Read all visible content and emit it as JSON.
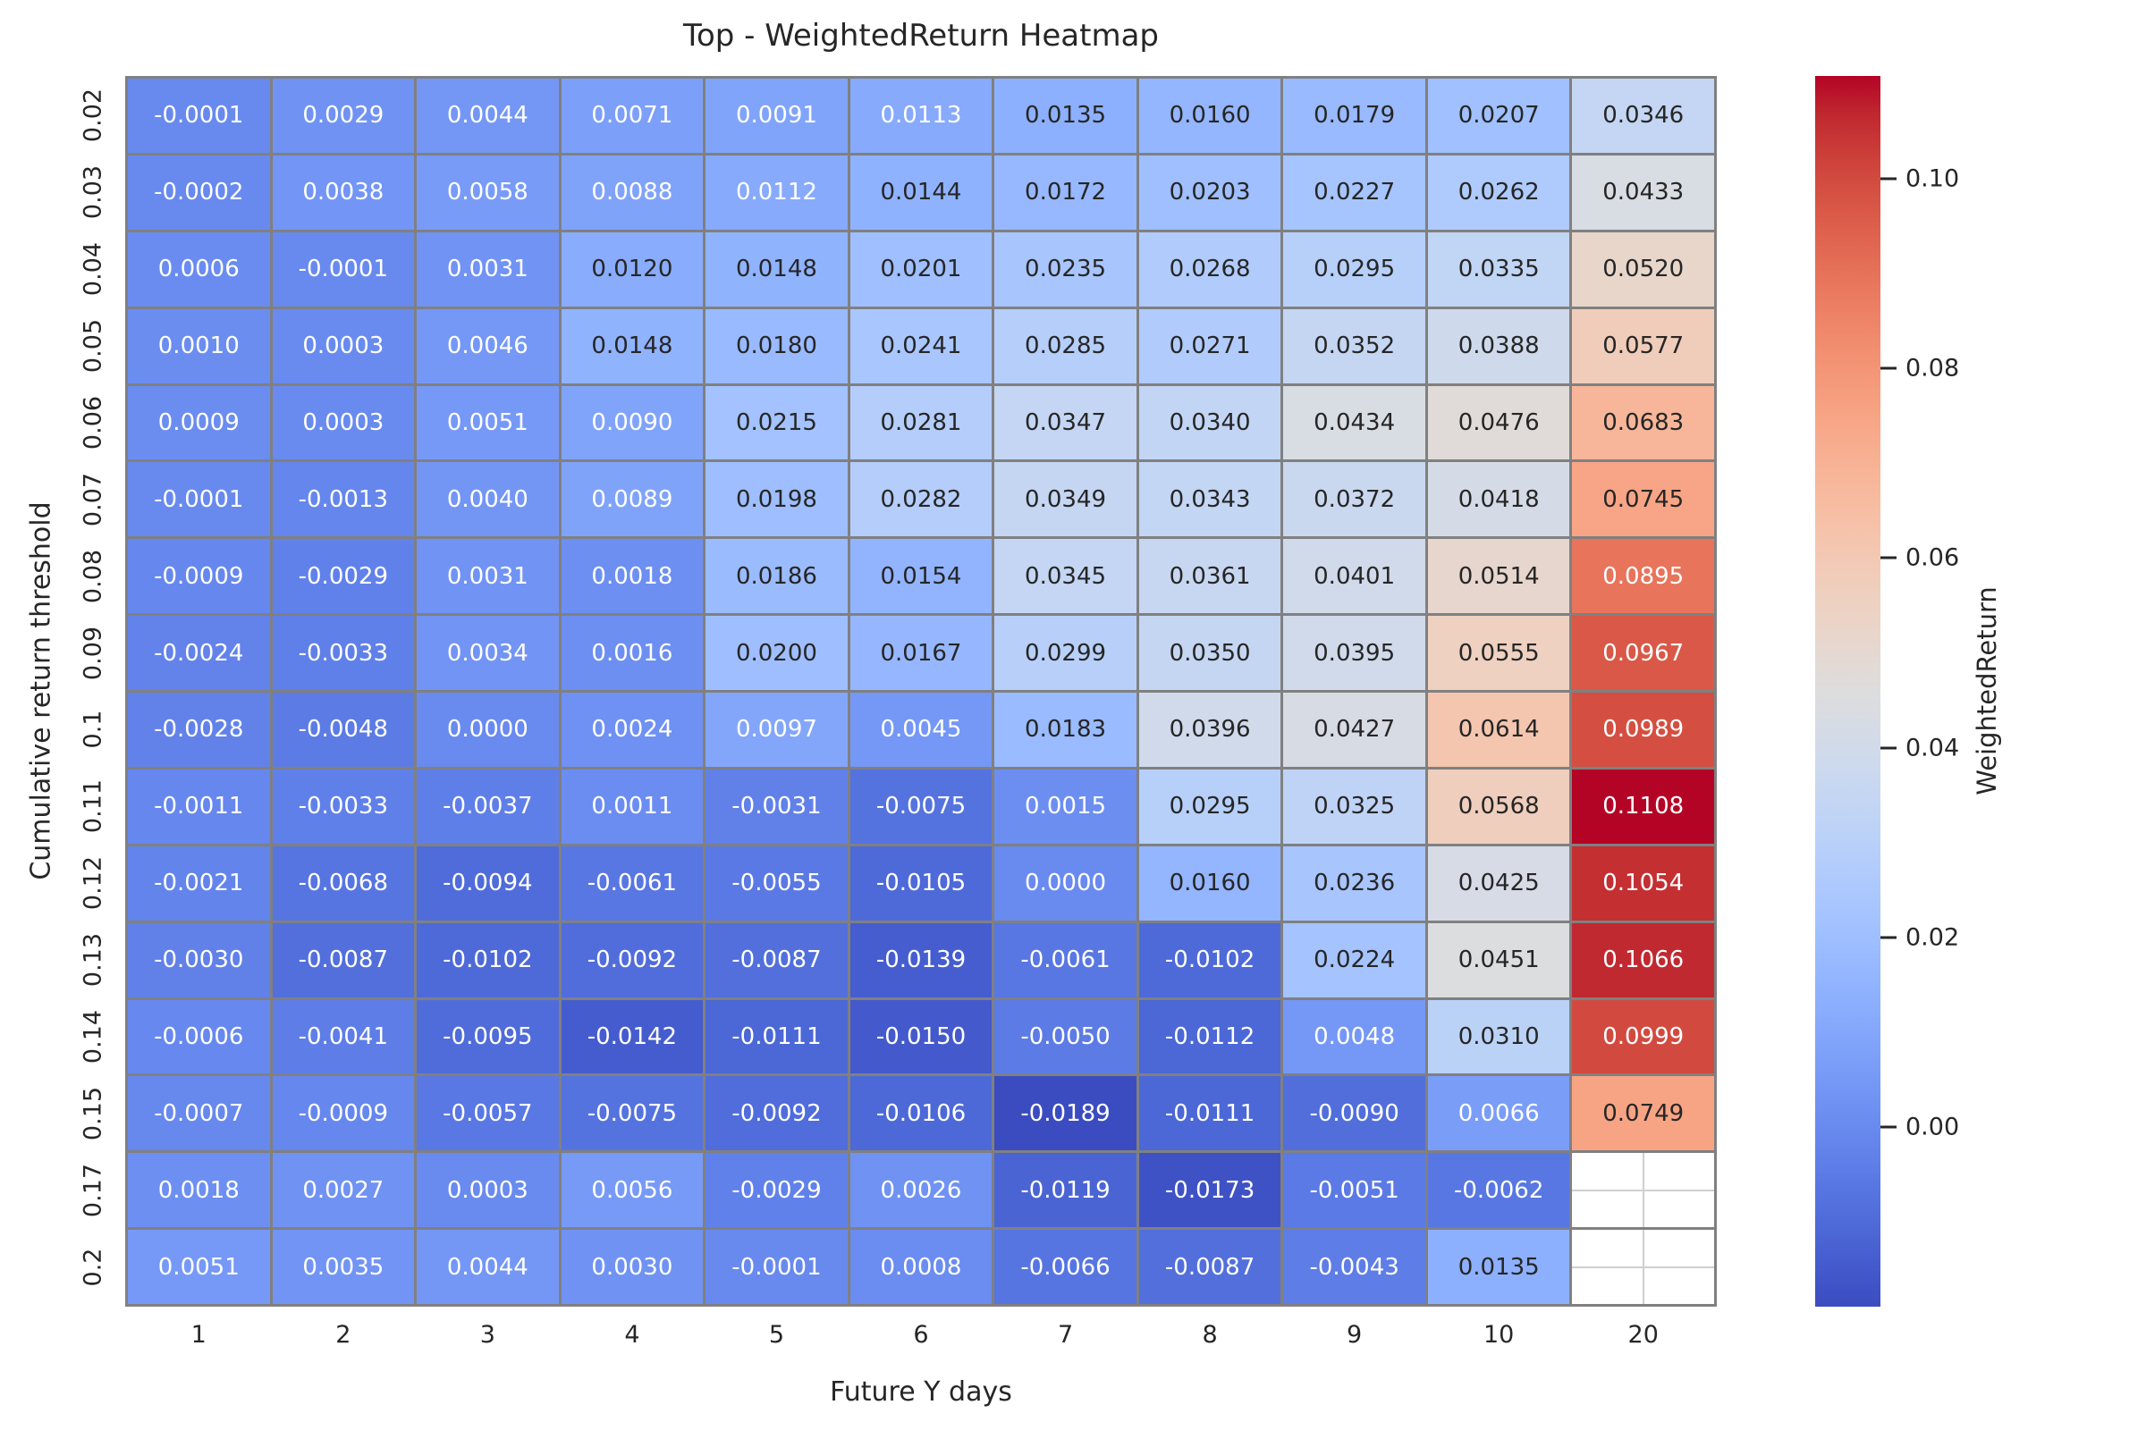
{
  "figure": {
    "title": "Top - WeightedReturn Heatmap",
    "xlabel": "Future Y days",
    "ylabel": "Cumulative return threshold"
  },
  "chart_data": {
    "type": "heatmap",
    "title": "Top - WeightedReturn Heatmap",
    "xlabel": "Future Y days",
    "ylabel": "Cumulative return threshold",
    "x_labels": [
      "1",
      "2",
      "3",
      "4",
      "5",
      "6",
      "7",
      "8",
      "9",
      "10",
      "20"
    ],
    "y_labels": [
      "0.02",
      "0.03",
      "0.04",
      "0.05",
      "0.06",
      "0.07",
      "0.08",
      "0.09",
      "0.1",
      "0.11",
      "0.12",
      "0.13",
      "0.14",
      "0.15",
      "0.17",
      "0.2"
    ],
    "colormap": "coolwarm",
    "vmin": -0.0189,
    "vmax": 0.1108,
    "annotation_decimals": 4,
    "grid": false,
    "legend_position": "right",
    "values": [
      [
        -0.0001,
        0.0029,
        0.0044,
        0.0071,
        0.0091,
        0.0113,
        0.0135,
        0.016,
        0.0179,
        0.0207,
        0.0346
      ],
      [
        -0.0002,
        0.0038,
        0.0058,
        0.0088,
        0.0112,
        0.0144,
        0.0172,
        0.0203,
        0.0227,
        0.0262,
        0.0433
      ],
      [
        0.0006,
        -0.0001,
        0.0031,
        0.012,
        0.0148,
        0.0201,
        0.0235,
        0.0268,
        0.0295,
        0.0335,
        0.052
      ],
      [
        0.001,
        0.0003,
        0.0046,
        0.0148,
        0.018,
        0.0241,
        0.0285,
        0.0271,
        0.0352,
        0.0388,
        0.0577
      ],
      [
        0.0009,
        0.0003,
        0.0051,
        0.009,
        0.0215,
        0.0281,
        0.0347,
        0.034,
        0.0434,
        0.0476,
        0.0683
      ],
      [
        -0.0001,
        -0.0013,
        0.004,
        0.0089,
        0.0198,
        0.0282,
        0.0349,
        0.0343,
        0.0372,
        0.0418,
        0.0745
      ],
      [
        -0.0009,
        -0.0029,
        0.0031,
        0.0018,
        0.0186,
        0.0154,
        0.0345,
        0.0361,
        0.0401,
        0.0514,
        0.0895
      ],
      [
        -0.0024,
        -0.0033,
        0.0034,
        0.0016,
        0.02,
        0.0167,
        0.0299,
        0.035,
        0.0395,
        0.0555,
        0.0967
      ],
      [
        -0.0028,
        -0.0048,
        0.0,
        0.0024,
        0.0097,
        0.0045,
        0.0183,
        0.0396,
        0.0427,
        0.0614,
        0.0989
      ],
      [
        -0.0011,
        -0.0033,
        -0.0037,
        0.0011,
        -0.0031,
        -0.0075,
        0.0015,
        0.0295,
        0.0325,
        0.0568,
        0.1108
      ],
      [
        -0.0021,
        -0.0068,
        -0.0094,
        -0.0061,
        -0.0055,
        -0.0105,
        0.0,
        0.016,
        0.0236,
        0.0425,
        0.1054
      ],
      [
        -0.003,
        -0.0087,
        -0.0102,
        -0.0092,
        -0.0087,
        -0.0139,
        -0.0061,
        -0.0102,
        0.0224,
        0.0451,
        0.1066
      ],
      [
        -0.0006,
        -0.0041,
        -0.0095,
        -0.0142,
        -0.0111,
        -0.015,
        -0.005,
        -0.0112,
        0.0048,
        0.031,
        0.0999
      ],
      [
        -0.0007,
        -0.0009,
        -0.0057,
        -0.0075,
        -0.0092,
        -0.0106,
        -0.0189,
        -0.0111,
        -0.009,
        0.0066,
        0.0749
      ],
      [
        0.0018,
        0.0027,
        0.0003,
        0.0056,
        -0.0029,
        0.0026,
        -0.0119,
        -0.0173,
        -0.0051,
        -0.0062,
        null
      ],
      [
        0.0051,
        0.0035,
        0.0044,
        0.003,
        -0.0001,
        0.0008,
        -0.0066,
        -0.0087,
        -0.0043,
        0.0135,
        null
      ]
    ],
    "colorbar": {
      "label": "WeightedReturn",
      "ticks": [
        "0.10",
        "0.08",
        "0.06",
        "0.04",
        "0.02",
        "0.00"
      ],
      "tick_values": [
        0.1,
        0.08,
        0.06,
        0.04,
        0.02,
        0.0
      ]
    }
  },
  "colors": {
    "background": "#ffffff",
    "gridline": "#808080",
    "text_dark": "#262626",
    "text_light": "#ffffff",
    "nan_gridline": "#cfcfcf",
    "coolwarm_anchors": [
      [
        59,
        76,
        192
      ],
      [
        68,
        90,
        204
      ],
      [
        77,
        104,
        215
      ],
      [
        87,
        117,
        225
      ],
      [
        98,
        130,
        234
      ],
      [
        108,
        142,
        241
      ],
      [
        119,
        154,
        247
      ],
      [
        130,
        165,
        251
      ],
      [
        141,
        176,
        254
      ],
      [
        152,
        185,
        255
      ],
      [
        163,
        194,
        255
      ],
      [
        174,
        201,
        253
      ],
      [
        184,
        208,
        249
      ],
      [
        194,
        213,
        244
      ],
      [
        204,
        217,
        238
      ],
      [
        213,
        219,
        230
      ],
      [
        221,
        221,
        221
      ],
      [
        229,
        216,
        209
      ],
      [
        236,
        211,
        197
      ],
      [
        241,
        204,
        185
      ],
      [
        245,
        196,
        173
      ],
      [
        247,
        187,
        160
      ],
      [
        247,
        177,
        148
      ],
      [
        247,
        166,
        135
      ],
      [
        244,
        154,
        123
      ],
      [
        241,
        141,
        111
      ],
      [
        236,
        127,
        99
      ],
      [
        229,
        112,
        88
      ],
      [
        222,
        96,
        77
      ],
      [
        213,
        80,
        66
      ],
      [
        203,
        62,
        56
      ],
      [
        192,
        40,
        47
      ],
      [
        180,
        4,
        38
      ]
    ]
  }
}
